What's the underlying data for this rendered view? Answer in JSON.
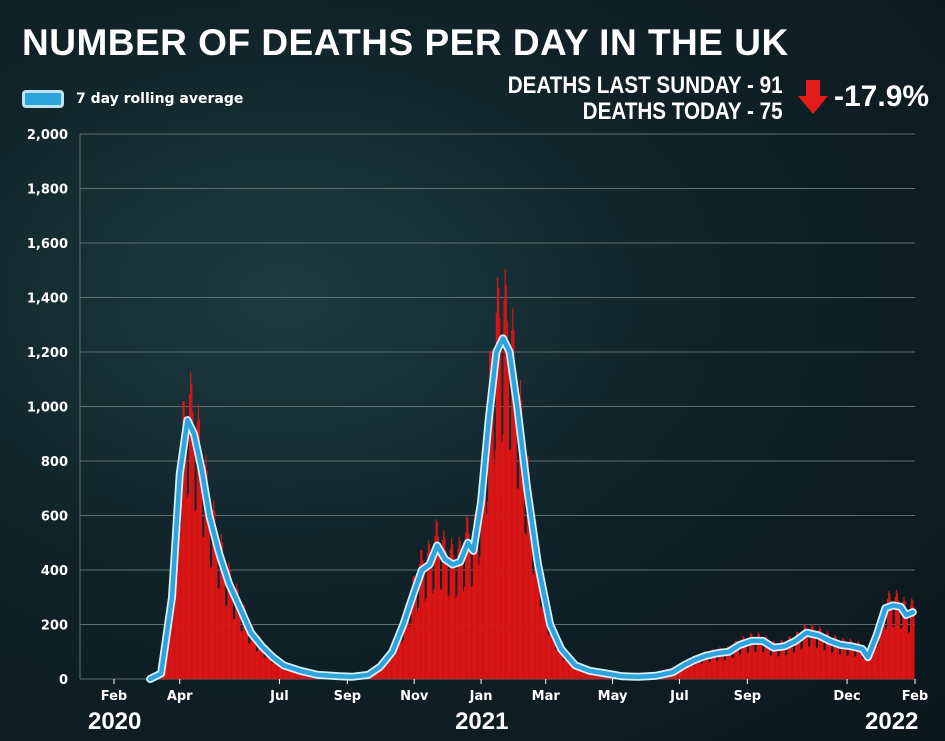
{
  "title": "NUMBER OF DEATHS PER DAY IN THE UK",
  "legend": {
    "label": "7 day rolling average"
  },
  "stats": {
    "last_sunday": "DEATHS LAST SUNDAY - 91",
    "today": "DEATHS TODAY - 75",
    "change": "-17.9%"
  },
  "colors": {
    "bars": "#dd1414",
    "line": "#2ea3dc",
    "line_outline": "#d7f0ff",
    "arrow": "#e31b1b",
    "grid": "#5d6f73"
  },
  "icons": {
    "change_arrow": "down-arrow-icon"
  },
  "chart_data": {
    "type": "bar",
    "ylim": [
      0,
      2000
    ],
    "yticks": [
      0,
      200,
      400,
      600,
      800,
      1000,
      1200,
      1400,
      1600,
      1800,
      2000
    ],
    "ytick_labels": [
      "0",
      "200",
      "400",
      "600",
      "800",
      "1,000",
      "1,200",
      "1,400",
      "1,600",
      "1,800",
      "2,000"
    ],
    "grid": true,
    "x_month_labels": [
      {
        "label": "Feb",
        "date": "2020-02-01"
      },
      {
        "label": "Apr",
        "date": "2020-04-01"
      },
      {
        "label": "Jul",
        "date": "2020-07-01"
      },
      {
        "label": "Sep",
        "date": "2020-09-01"
      },
      {
        "label": "Nov",
        "date": "2020-11-01"
      },
      {
        "label": "Jan",
        "date": "2021-01-01"
      },
      {
        "label": "Mar",
        "date": "2021-03-01"
      },
      {
        "label": "May",
        "date": "2021-05-01"
      },
      {
        "label": "Jul",
        "date": "2021-07-01"
      },
      {
        "label": "Sep",
        "date": "2021-09-01"
      },
      {
        "label": "Dec",
        "date": "2021-12-01"
      },
      {
        "label": "Feb",
        "date": "2022-02-01"
      }
    ],
    "x_year_labels": [
      {
        "label": "2020",
        "date": "2020-02-01"
      },
      {
        "label": "2021",
        "date": "2021-01-01"
      },
      {
        "label": "2022",
        "date": "2022-02-01"
      }
    ],
    "xlim": [
      "2020-01-01",
      "2022-02-01"
    ],
    "series": [
      {
        "name": "7 day rolling average",
        "points": [
          [
            "2020-03-05",
            0
          ],
          [
            "2020-03-15",
            20
          ],
          [
            "2020-03-25",
            300
          ],
          [
            "2020-04-01",
            750
          ],
          [
            "2020-04-08",
            950
          ],
          [
            "2020-04-14",
            900
          ],
          [
            "2020-04-21",
            770
          ],
          [
            "2020-04-28",
            600
          ],
          [
            "2020-05-07",
            460
          ],
          [
            "2020-05-16",
            350
          ],
          [
            "2020-05-25",
            270
          ],
          [
            "2020-06-05",
            170
          ],
          [
            "2020-06-15",
            120
          ],
          [
            "2020-06-25",
            80
          ],
          [
            "2020-07-05",
            50
          ],
          [
            "2020-07-20",
            30
          ],
          [
            "2020-08-05",
            15
          ],
          [
            "2020-08-25",
            10
          ],
          [
            "2020-09-05",
            8
          ],
          [
            "2020-09-20",
            15
          ],
          [
            "2020-10-01",
            45
          ],
          [
            "2020-10-12",
            100
          ],
          [
            "2020-10-22",
            200
          ],
          [
            "2020-11-01",
            320
          ],
          [
            "2020-11-08",
            400
          ],
          [
            "2020-11-15",
            420
          ],
          [
            "2020-11-22",
            490
          ],
          [
            "2020-11-29",
            440
          ],
          [
            "2020-12-06",
            420
          ],
          [
            "2020-12-13",
            430
          ],
          [
            "2020-12-20",
            500
          ],
          [
            "2020-12-25",
            470
          ],
          [
            "2021-01-01",
            650
          ],
          [
            "2021-01-08",
            950
          ],
          [
            "2021-01-15",
            1200
          ],
          [
            "2021-01-21",
            1250
          ],
          [
            "2021-01-27",
            1200
          ],
          [
            "2021-02-03",
            1000
          ],
          [
            "2021-02-12",
            700
          ],
          [
            "2021-02-22",
            420
          ],
          [
            "2021-03-05",
            200
          ],
          [
            "2021-03-15",
            110
          ],
          [
            "2021-03-28",
            50
          ],
          [
            "2021-04-10",
            30
          ],
          [
            "2021-04-25",
            20
          ],
          [
            "2021-05-10",
            10
          ],
          [
            "2021-05-25",
            8
          ],
          [
            "2021-06-10",
            12
          ],
          [
            "2021-06-25",
            25
          ],
          [
            "2021-07-05",
            50
          ],
          [
            "2021-07-15",
            70
          ],
          [
            "2021-07-25",
            85
          ],
          [
            "2021-08-05",
            95
          ],
          [
            "2021-08-15",
            100
          ],
          [
            "2021-08-25",
            125
          ],
          [
            "2021-09-05",
            140
          ],
          [
            "2021-09-15",
            140
          ],
          [
            "2021-09-25",
            115
          ],
          [
            "2021-10-05",
            120
          ],
          [
            "2021-10-15",
            140
          ],
          [
            "2021-10-25",
            170
          ],
          [
            "2021-11-05",
            160
          ],
          [
            "2021-11-15",
            140
          ],
          [
            "2021-11-25",
            125
          ],
          [
            "2021-12-05",
            120
          ],
          [
            "2021-12-15",
            110
          ],
          [
            "2021-12-20",
            80
          ],
          [
            "2021-12-28",
            160
          ],
          [
            "2022-01-05",
            260
          ],
          [
            "2022-01-12",
            270
          ],
          [
            "2022-01-19",
            265
          ],
          [
            "2022-01-24",
            235
          ],
          [
            "2022-01-30",
            245
          ]
        ]
      }
    ]
  }
}
